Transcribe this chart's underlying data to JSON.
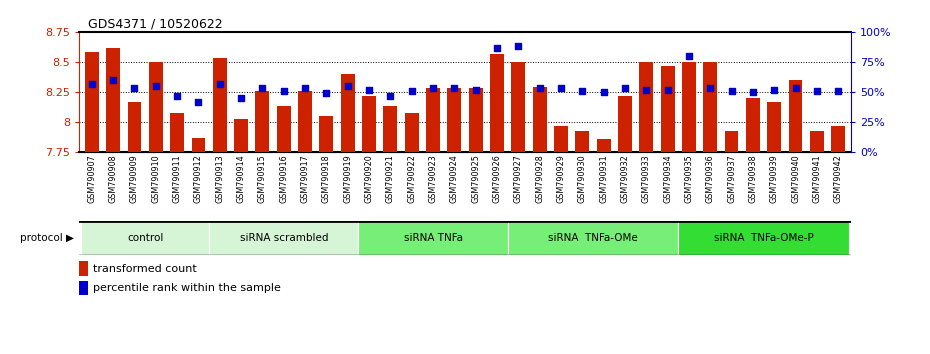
{
  "title": "GDS4371 / 10520622",
  "samples": [
    "GSM790907",
    "GSM790908",
    "GSM790909",
    "GSM790910",
    "GSM790911",
    "GSM790912",
    "GSM790913",
    "GSM790914",
    "GSM790915",
    "GSM790916",
    "GSM790917",
    "GSM790918",
    "GSM790919",
    "GSM790920",
    "GSM790921",
    "GSM790922",
    "GSM790923",
    "GSM790924",
    "GSM790925",
    "GSM790926",
    "GSM790927",
    "GSM790928",
    "GSM790929",
    "GSM790930",
    "GSM790931",
    "GSM790932",
    "GSM790933",
    "GSM790934",
    "GSM790935",
    "GSM790936",
    "GSM790937",
    "GSM790938",
    "GSM790939",
    "GSM790940",
    "GSM790941",
    "GSM790942"
  ],
  "bar_values": [
    8.58,
    8.62,
    8.17,
    8.5,
    8.08,
    7.87,
    8.53,
    8.03,
    8.26,
    8.13,
    8.26,
    8.05,
    8.4,
    8.22,
    8.13,
    8.08,
    8.28,
    8.28,
    8.28,
    8.57,
    8.5,
    8.29,
    7.97,
    7.93,
    7.86,
    8.22,
    8.5,
    8.47,
    8.5,
    8.5,
    7.93,
    8.2,
    8.17,
    8.35,
    7.93,
    7.97
  ],
  "blue_values": [
    8.32,
    8.35,
    8.28,
    8.3,
    8.22,
    8.17,
    8.32,
    8.2,
    8.28,
    8.26,
    8.28,
    8.24,
    8.3,
    8.27,
    8.22,
    8.26,
    8.28,
    8.28,
    8.27,
    8.62,
    8.63,
    8.28,
    8.28,
    8.26,
    8.25,
    8.28,
    8.27,
    8.27,
    8.55,
    8.28,
    8.26,
    8.25,
    8.27,
    8.28,
    8.26,
    8.26
  ],
  "groups": [
    {
      "label": "control",
      "start": 0,
      "end": 5,
      "color": "#d6f5d6"
    },
    {
      "label": "siRNA scrambled",
      "start": 6,
      "end": 12,
      "color": "#d6f5d6"
    },
    {
      "label": "siRNA TNFa",
      "start": 13,
      "end": 19,
      "color": "#77ee77"
    },
    {
      "label": "siRNA  TNFa-OMe",
      "start": 20,
      "end": 27,
      "color": "#77ee77"
    },
    {
      "label": "siRNA  TNFa-OMe-P",
      "start": 28,
      "end": 35,
      "color": "#33dd33"
    }
  ],
  "ylim_left": [
    7.75,
    8.75
  ],
  "ylim_right": [
    0,
    100
  ],
  "yticks_left": [
    7.75,
    8.0,
    8.25,
    8.5,
    8.75
  ],
  "yticks_right": [
    0,
    25,
    50,
    75,
    100
  ],
  "bar_color": "#cc2200",
  "dot_color": "#0000cc",
  "bg_color": "#ffffff",
  "xtick_bg": "#c8c8c8"
}
